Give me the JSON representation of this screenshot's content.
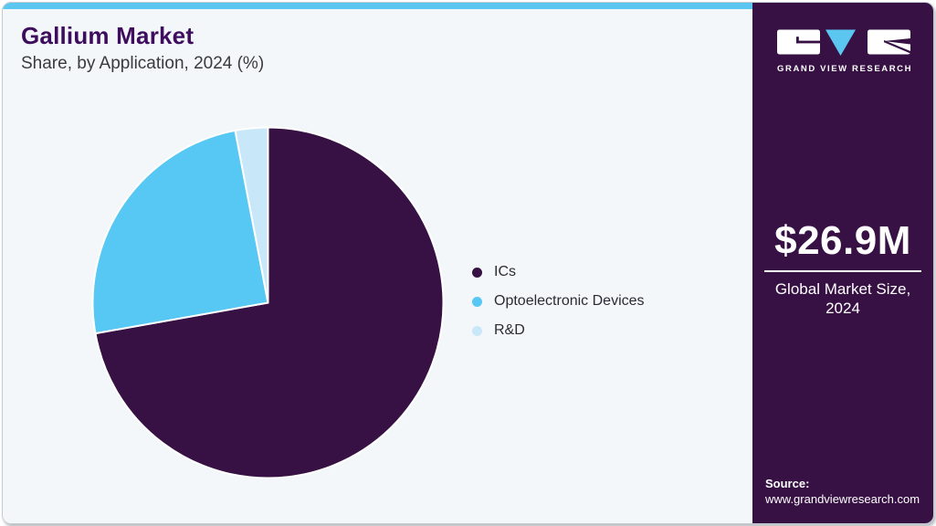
{
  "header": {
    "title": "Gallium Market",
    "subtitle": "Share, by Application, 2024 (%)"
  },
  "chart_data": {
    "type": "pie",
    "title": "Gallium Market",
    "subtitle": "Share, by Application, 2024 (%)",
    "labels": [
      "ICs",
      "Optoelectronic Devices",
      "R&D"
    ],
    "values": [
      72.2,
      24.8,
      3.0
    ],
    "unit": "%",
    "colors": [
      "#371144",
      "#57C8F4",
      "#C8E8FA"
    ],
    "start_angle_deg": 0,
    "direction": "clockwise",
    "legend_position": "right",
    "data_labels_shown": false
  },
  "sidebar": {
    "brand_name": "GRAND VIEW RESEARCH",
    "market_size_value": "$26.9M",
    "market_size_label": "Global Market Size,\n2024",
    "source_label": "Source:",
    "source_url": "www.grandviewresearch.com"
  },
  "colors": {
    "accent_cyan": "#5BC6F0",
    "brand_purple": "#371144",
    "title_purple": "#3E0D5E",
    "panel_bg": "#F3F7FA",
    "pie_stroke": "#FFFFFF"
  }
}
